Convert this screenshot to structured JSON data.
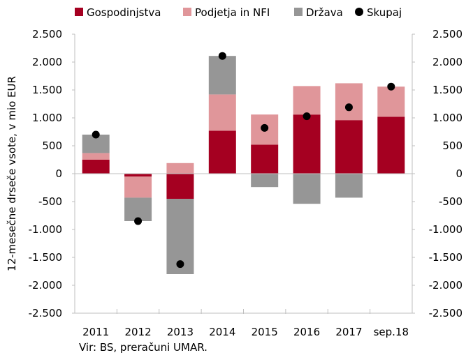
{
  "chart_data": {
    "type": "bar",
    "stacked": true,
    "categories": [
      "2011",
      "2012",
      "2013",
      "2014",
      "2015",
      "2016",
      "2017",
      "sep.18"
    ],
    "series": [
      {
        "name": "Gospodinjstva",
        "kind": "bar",
        "color": "#a50021",
        "values": [
          250,
          -50,
          -450,
          770,
          520,
          1060,
          960,
          1020
        ]
      },
      {
        "name": "Podjetja in NFI",
        "kind": "bar",
        "color": "#e0969a",
        "values": [
          120,
          -380,
          190,
          650,
          540,
          510,
          660,
          540
        ]
      },
      {
        "name": "Država",
        "kind": "bar",
        "color": "#969696",
        "values": [
          330,
          -420,
          -1350,
          690,
          -240,
          -540,
          -430,
          0
        ]
      },
      {
        "name": "Skupaj",
        "kind": "scatter",
        "color": "#000000",
        "values": [
          700,
          -850,
          -1620,
          2110,
          820,
          1030,
          1190,
          1560
        ]
      }
    ],
    "ylabel": "12-mesečne drseče vsote, v mio EUR",
    "ylim": [
      -2500,
      2500
    ],
    "ytick_step": 500,
    "ytick_labels": [
      "-2.500",
      "-2.000",
      "-1.500",
      "-1.000",
      "-500",
      "0",
      "500",
      "1.000",
      "1.500",
      "2.000",
      "2.500"
    ],
    "legend_position": "top",
    "grid": false,
    "source": "Vir: BS, preračuni UMAR."
  }
}
